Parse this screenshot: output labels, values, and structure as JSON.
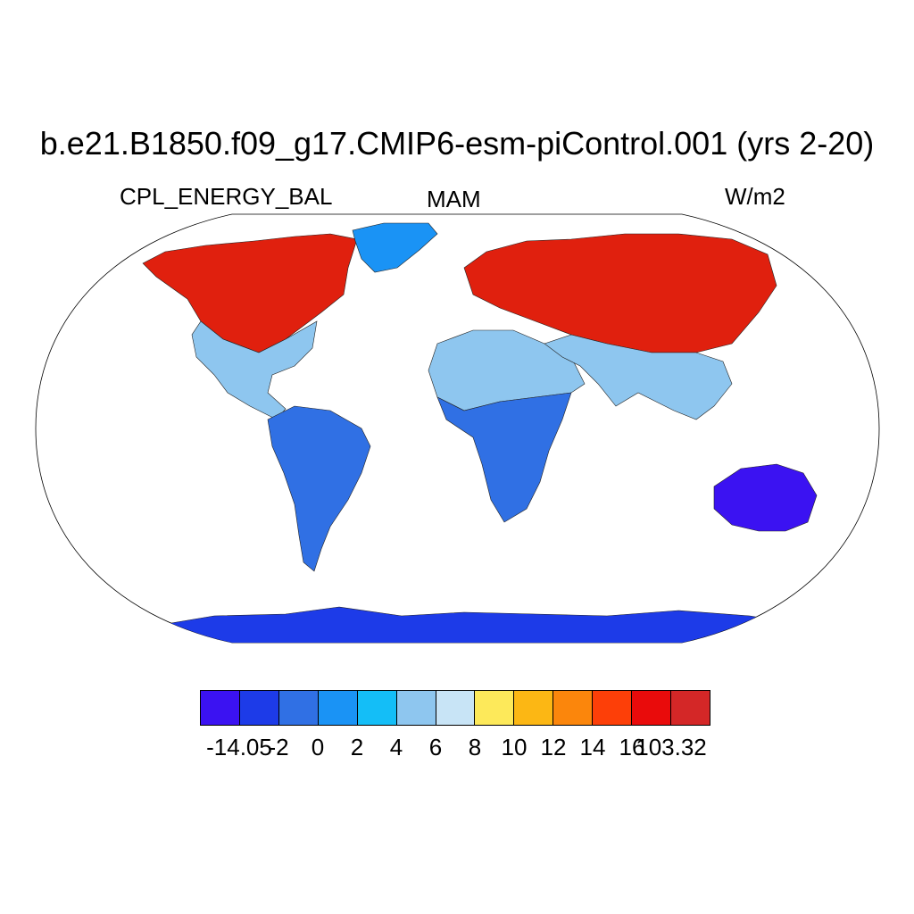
{
  "title": "b.e21.B1850.f09_g17.CMIP6-esm-piControl.001 (yrs 2-20)",
  "subtitle_left": "CPL_ENERGY_BAL",
  "subtitle_center": "MAM",
  "subtitle_right": "W/m2",
  "colorbar": {
    "colors": [
      "#3b12f2",
      "#1d3be8",
      "#3070e4",
      "#1a93f5",
      "#14bef7",
      "#8ec6ef",
      "#c8e4f6",
      "#fde95a",
      "#fcb714",
      "#fb860c",
      "#fd3f08",
      "#e90b0b",
      "#d42727"
    ],
    "labels": [
      "-14.05",
      "-2",
      "0",
      "2",
      "4",
      "6",
      "8",
      "10",
      "12",
      "14",
      "16",
      "103.32"
    ]
  },
  "map_regions": [
    {
      "name": "north-america-north",
      "color": "#e0200e"
    },
    {
      "name": "north-america-south",
      "color": "#8ec6ef"
    },
    {
      "name": "greenland",
      "color": "#1a93f5"
    },
    {
      "name": "south-america",
      "color": "#3070e4"
    },
    {
      "name": "africa-north",
      "color": "#8ec6ef"
    },
    {
      "name": "africa-south",
      "color": "#3070e4"
    },
    {
      "name": "eurasia-north",
      "color": "#e0200e"
    },
    {
      "name": "asia-south",
      "color": "#8ec6ef"
    },
    {
      "name": "australia",
      "color": "#3b12f2"
    },
    {
      "name": "antarctica",
      "color": "#1d3be8"
    }
  ]
}
